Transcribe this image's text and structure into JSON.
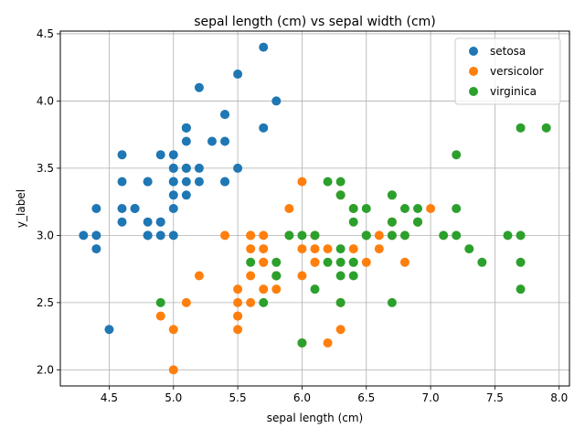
{
  "chart_data": {
    "type": "scatter",
    "title": "sepal length (cm) vs sepal width (cm)",
    "xlabel": "sepal length (cm)",
    "ylabel": "y_label",
    "xlim": [
      4.12,
      8.08
    ],
    "ylim": [
      1.88,
      4.52
    ],
    "xticks": [
      "4.5",
      "5.0",
      "5.5",
      "6.0",
      "6.5",
      "7.0",
      "7.5",
      "8.0"
    ],
    "xtick_values": [
      4.5,
      5.0,
      5.5,
      6.0,
      6.5,
      7.0,
      7.5,
      8.0
    ],
    "yticks": [
      "2.0",
      "2.5",
      "3.0",
      "3.5",
      "4.0",
      "4.5"
    ],
    "ytick_values": [
      2.0,
      2.5,
      3.0,
      3.5,
      4.0,
      4.5
    ],
    "grid": true,
    "legend_position": "top-right",
    "series": [
      {
        "name": "setosa",
        "color": "#1f77b4",
        "points": [
          [
            5.1,
            3.5
          ],
          [
            4.9,
            3.0
          ],
          [
            4.7,
            3.2
          ],
          [
            4.6,
            3.1
          ],
          [
            5.0,
            3.6
          ],
          [
            5.4,
            3.9
          ],
          [
            4.6,
            3.4
          ],
          [
            5.0,
            3.4
          ],
          [
            4.4,
            2.9
          ],
          [
            4.9,
            3.1
          ],
          [
            5.4,
            3.7
          ],
          [
            4.8,
            3.4
          ],
          [
            4.8,
            3.0
          ],
          [
            4.3,
            3.0
          ],
          [
            5.8,
            4.0
          ],
          [
            5.7,
            4.4
          ],
          [
            5.4,
            3.9
          ],
          [
            5.1,
            3.5
          ],
          [
            5.7,
            3.8
          ],
          [
            5.1,
            3.8
          ],
          [
            5.4,
            3.4
          ],
          [
            5.1,
            3.7
          ],
          [
            4.6,
            3.6
          ],
          [
            5.1,
            3.3
          ],
          [
            4.8,
            3.4
          ],
          [
            5.0,
            3.0
          ],
          [
            5.0,
            3.4
          ],
          [
            5.2,
            3.5
          ],
          [
            5.2,
            3.4
          ],
          [
            4.7,
            3.2
          ],
          [
            4.8,
            3.1
          ],
          [
            5.4,
            3.4
          ],
          [
            5.2,
            4.1
          ],
          [
            5.5,
            4.2
          ],
          [
            4.9,
            3.1
          ],
          [
            5.0,
            3.2
          ],
          [
            5.5,
            3.5
          ],
          [
            4.9,
            3.6
          ],
          [
            4.4,
            3.0
          ],
          [
            5.1,
            3.4
          ],
          [
            5.0,
            3.5
          ],
          [
            4.5,
            2.3
          ],
          [
            4.4,
            3.2
          ],
          [
            5.0,
            3.5
          ],
          [
            5.1,
            3.8
          ],
          [
            4.8,
            3.0
          ],
          [
            5.1,
            3.8
          ],
          [
            4.6,
            3.2
          ],
          [
            5.3,
            3.7
          ],
          [
            5.0,
            3.3
          ]
        ]
      },
      {
        "name": "versicolor",
        "color": "#ff7f0e",
        "points": [
          [
            7.0,
            3.2
          ],
          [
            6.4,
            3.2
          ],
          [
            6.9,
            3.1
          ],
          [
            5.5,
            2.3
          ],
          [
            6.5,
            2.8
          ],
          [
            5.7,
            2.8
          ],
          [
            6.3,
            3.3
          ],
          [
            4.9,
            2.4
          ],
          [
            6.6,
            2.9
          ],
          [
            5.2,
            2.7
          ],
          [
            5.0,
            2.0
          ],
          [
            5.9,
            3.0
          ],
          [
            6.0,
            2.2
          ],
          [
            6.1,
            2.9
          ],
          [
            5.6,
            2.9
          ],
          [
            6.7,
            3.1
          ],
          [
            5.6,
            3.0
          ],
          [
            5.8,
            2.7
          ],
          [
            6.2,
            2.2
          ],
          [
            5.6,
            2.5
          ],
          [
            5.9,
            3.2
          ],
          [
            6.1,
            2.8
          ],
          [
            6.3,
            2.5
          ],
          [
            6.1,
            2.8
          ],
          [
            6.4,
            2.9
          ],
          [
            6.6,
            3.0
          ],
          [
            6.8,
            2.8
          ],
          [
            6.7,
            3.0
          ],
          [
            6.0,
            2.9
          ],
          [
            5.7,
            2.6
          ],
          [
            5.5,
            2.4
          ],
          [
            5.5,
            2.4
          ],
          [
            5.8,
            2.7
          ],
          [
            6.0,
            2.7
          ],
          [
            5.4,
            3.0
          ],
          [
            6.0,
            3.4
          ],
          [
            6.7,
            3.1
          ],
          [
            6.3,
            2.3
          ],
          [
            5.6,
            3.0
          ],
          [
            5.5,
            2.5
          ],
          [
            5.5,
            2.6
          ],
          [
            6.1,
            3.0
          ],
          [
            5.8,
            2.6
          ],
          [
            5.0,
            2.3
          ],
          [
            5.6,
            2.7
          ],
          [
            5.7,
            3.0
          ],
          [
            5.7,
            2.9
          ],
          [
            6.2,
            2.9
          ],
          [
            5.1,
            2.5
          ],
          [
            5.7,
            2.8
          ]
        ]
      },
      {
        "name": "virginica",
        "color": "#2ca02c",
        "points": [
          [
            6.3,
            3.3
          ],
          [
            5.8,
            2.7
          ],
          [
            7.1,
            3.0
          ],
          [
            6.3,
            2.9
          ],
          [
            6.5,
            3.0
          ],
          [
            7.6,
            3.0
          ],
          [
            4.9,
            2.5
          ],
          [
            7.3,
            2.9
          ],
          [
            6.7,
            2.5
          ],
          [
            7.2,
            3.6
          ],
          [
            6.5,
            3.2
          ],
          [
            6.4,
            2.7
          ],
          [
            6.8,
            3.0
          ],
          [
            5.7,
            2.5
          ],
          [
            5.8,
            2.8
          ],
          [
            6.4,
            3.2
          ],
          [
            6.5,
            3.0
          ],
          [
            7.7,
            3.8
          ],
          [
            7.7,
            2.6
          ],
          [
            6.0,
            2.2
          ],
          [
            6.9,
            3.2
          ],
          [
            5.6,
            2.8
          ],
          [
            7.7,
            2.8
          ],
          [
            6.3,
            2.7
          ],
          [
            6.7,
            3.3
          ],
          [
            7.2,
            3.2
          ],
          [
            6.2,
            2.8
          ],
          [
            6.1,
            3.0
          ],
          [
            6.4,
            2.8
          ],
          [
            7.2,
            3.0
          ],
          [
            7.4,
            2.8
          ],
          [
            7.9,
            3.8
          ],
          [
            6.4,
            2.8
          ],
          [
            6.3,
            2.8
          ],
          [
            6.1,
            2.6
          ],
          [
            7.7,
            3.0
          ],
          [
            6.3,
            3.4
          ],
          [
            6.4,
            3.1
          ],
          [
            6.0,
            3.0
          ],
          [
            6.9,
            3.1
          ],
          [
            6.7,
            3.1
          ],
          [
            6.9,
            3.1
          ],
          [
            5.8,
            2.7
          ],
          [
            6.8,
            3.2
          ],
          [
            6.7,
            3.3
          ],
          [
            6.7,
            3.0
          ],
          [
            6.3,
            2.5
          ],
          [
            6.5,
            3.0
          ],
          [
            6.2,
            3.4
          ],
          [
            5.9,
            3.0
          ]
        ]
      }
    ]
  }
}
